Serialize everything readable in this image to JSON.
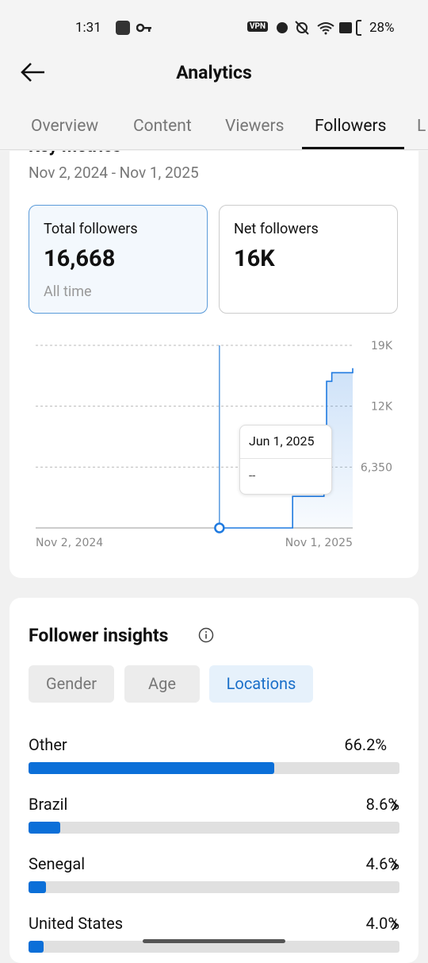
{
  "status_bar": {
    "time": "1:31",
    "vpn": "VPN",
    "battery": "28%"
  },
  "header": {
    "title": "Analytics"
  },
  "tabs": [
    "Overview",
    "Content",
    "Viewers",
    "Followers",
    "L"
  ],
  "active_tab": 3,
  "key_metrics": {
    "title": "Key metrics",
    "date_range": "Nov 2, 2024 - Nov 1, 2025",
    "cards": [
      {
        "label": "Total followers",
        "value": "16,668",
        "note": "All time"
      },
      {
        "label": "Net followers",
        "value": "16K"
      }
    ]
  },
  "chart_data": {
    "type": "line",
    "x": [
      "2025-06-01",
      "2025-08-22",
      "2025-08-24",
      "2025-09-29",
      "2025-10-02",
      "2025-10-08",
      "2025-11-01"
    ],
    "values": [
      0,
      0,
      3300,
      4550,
      15300,
      16200,
      16668
    ],
    "color": "#1f7ae0",
    "xlim": [
      "2024-11-02",
      "2025-11-01"
    ],
    "xticks": [
      {
        "value": "2024-11-02",
        "label": "Nov 2, 2024"
      },
      {
        "value": "2025-11-01",
        "label": "Nov 1, 2025"
      }
    ],
    "ylim": [
      0,
      19050
    ],
    "yticks": [
      {
        "value": 6350,
        "label": "6,350"
      },
      {
        "value": 12700,
        "label": "12K"
      },
      {
        "value": 19050,
        "label": "19K"
      }
    ],
    "grid": true,
    "tooltip": {
      "x": "2025-06-01",
      "date": "Jun 1, 2025",
      "value": "--"
    }
  },
  "insights": {
    "title": "Follower insights",
    "filters": [
      "Gender",
      "Age",
      "Locations"
    ],
    "selected_filter": 2,
    "locations": {
      "type": "bar",
      "categories": [
        "Other",
        "Brazil",
        "Senegal",
        "United States"
      ],
      "values": [
        66.2,
        8.6,
        4.6,
        4.0
      ],
      "value_labels": [
        "66.2%",
        "8.6%",
        "4.6%",
        "4.0%"
      ],
      "xlim": [
        0,
        100
      ],
      "color": "#0b6fd8"
    }
  }
}
